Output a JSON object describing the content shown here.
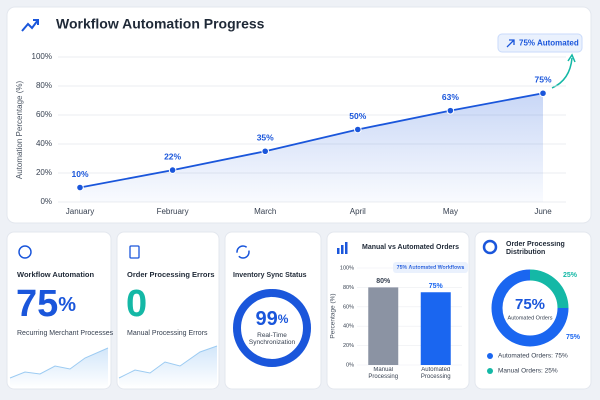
{
  "chart_data": [
    {
      "type": "line",
      "title": "Workflow Automation Progress",
      "badge": "75% Automated",
      "ylabel": "Automation Percentage (%)",
      "categories": [
        "January",
        "February",
        "March",
        "April",
        "May",
        "June"
      ],
      "values": [
        10,
        22,
        35,
        50,
        63,
        75
      ],
      "value_labels": [
        "10%",
        "22%",
        "35%",
        "50%",
        "63%",
        "75%"
      ],
      "color": "#1a56db",
      "ylim": [
        0,
        100
      ],
      "yticks": [
        {
          "value": 0,
          "label": "0%"
        },
        {
          "value": 20,
          "label": "20%"
        },
        {
          "value": 40,
          "label": "40%"
        },
        {
          "value": 60,
          "label": "60%"
        },
        {
          "value": 80,
          "label": "80%"
        },
        {
          "value": 100,
          "label": "100%"
        }
      ],
      "grid": true
    },
    {
      "type": "bar",
      "title": "Manual vs Automated Orders",
      "badge": "75% Automated Workflows",
      "ylabel": "Percentage (%)",
      "categories": [
        "Manual Processing",
        "Automated Processing"
      ],
      "values": [
        80,
        75
      ],
      "value_labels": [
        "80%",
        "75%"
      ],
      "colors": [
        "#8b93a3",
        "#1a66f0"
      ],
      "ylim": [
        0,
        100
      ],
      "yticks": [
        {
          "value": 0,
          "label": "0%"
        },
        {
          "value": 20,
          "label": "20%"
        },
        {
          "value": 40,
          "label": "40%"
        },
        {
          "value": 60,
          "label": "60%"
        },
        {
          "value": 80,
          "label": "80%"
        },
        {
          "value": 100,
          "label": "100%"
        }
      ],
      "grid": true
    },
    {
      "type": "pie",
      "title": "Order Processing Distribution",
      "categories": [
        "Automated Orders",
        "Manual Orders"
      ],
      "values": [
        75,
        25
      ],
      "value_labels": [
        "75%",
        "25%"
      ],
      "legend_labels": [
        "Automated Orders: 75%",
        "Manual Orders: 25%"
      ],
      "colors": [
        "#1a66f0",
        "#14b8a6"
      ]
    }
  ],
  "cards": [
    {
      "title": "Workflow Automation",
      "value": 75,
      "unit": "%",
      "caption": "Recurring Merchant Processes"
    },
    {
      "title": "Order Processing Errors",
      "value": 0,
      "caption": "Manual Processing Errors"
    },
    {
      "title": "Inventory Sync Status",
      "value": 99,
      "unit": "%",
      "caption": "Real-Time Synchronization"
    }
  ]
}
